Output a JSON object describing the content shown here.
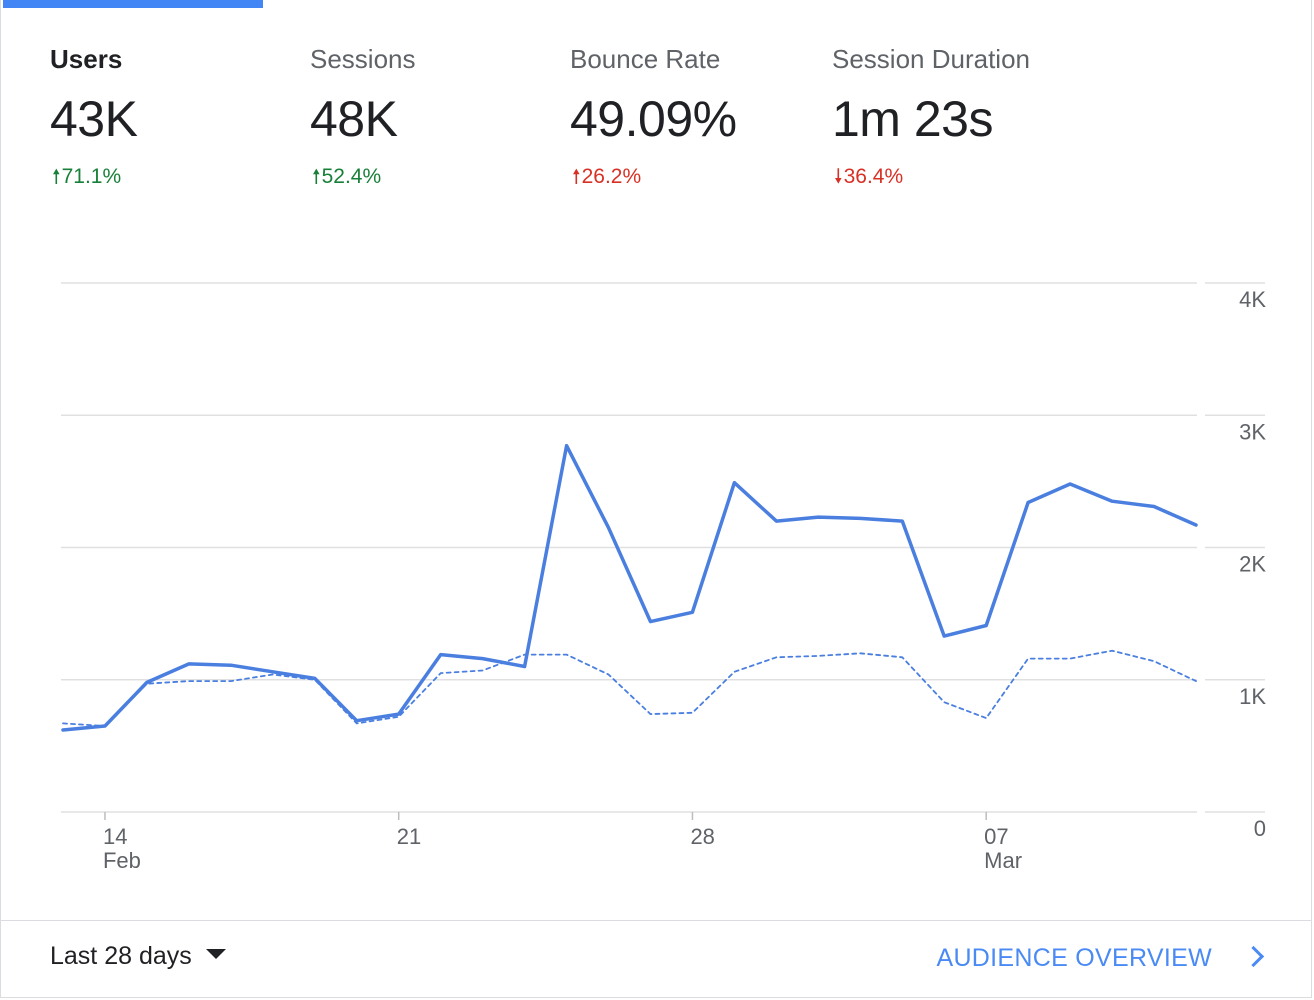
{
  "metrics": [
    {
      "label": "Users",
      "value": "43K",
      "delta": "71.1%",
      "direction": "up",
      "delta_color": "#188038"
    },
    {
      "label": "Sessions",
      "value": "48K",
      "delta": "52.4%",
      "direction": "up",
      "delta_color": "#188038"
    },
    {
      "label": "Bounce Rate",
      "value": "49.09%",
      "delta": "26.2%",
      "direction": "up",
      "delta_color": "#d93025"
    },
    {
      "label": "Session Duration",
      "value": "1m 23s",
      "delta": "36.4%",
      "direction": "down",
      "delta_color": "#d93025"
    }
  ],
  "footer": {
    "date_range": "Last 28 days",
    "overview_link": "AUDIENCE OVERVIEW"
  },
  "colors": {
    "accent": "#4285f4",
    "series_current": "#4a7fe0",
    "up_good": "#188038",
    "bad": "#d93025"
  },
  "chart_data": {
    "type": "line",
    "x": [
      "Feb 13",
      "Feb 14",
      "Feb 15",
      "Feb 16",
      "Feb 17",
      "Feb 18",
      "Feb 19",
      "Feb 20",
      "Feb 21",
      "Feb 22",
      "Feb 23",
      "Feb 24",
      "Feb 25",
      "Feb 26",
      "Feb 27",
      "Feb 28",
      "Mar 01",
      "Mar 02",
      "Mar 03",
      "Mar 04",
      "Mar 05",
      "Mar 06",
      "Mar 07",
      "Mar 08",
      "Mar 09",
      "Mar 10",
      "Mar 11",
      "Mar 12"
    ],
    "series": [
      {
        "style": "solid",
        "values": [
          620,
          650,
          980,
          1120,
          1110,
          1060,
          1010,
          690,
          740,
          1190,
          1160,
          1100,
          2770,
          2150,
          1440,
          1510,
          2490,
          2200,
          2230,
          2220,
          2200,
          1330,
          1410,
          2340,
          2480,
          2350,
          2310,
          2170
        ]
      },
      {
        "style": "dashed",
        "values": [
          670,
          650,
          970,
          990,
          990,
          1040,
          1000,
          670,
          720,
          1050,
          1070,
          1190,
          1190,
          1040,
          740,
          750,
          1060,
          1170,
          1180,
          1200,
          1170,
          830,
          710,
          1160,
          1160,
          1220,
          1140,
          990
        ]
      }
    ],
    "x_ticks": [
      {
        "index": 1,
        "day": "14",
        "month": "Feb"
      },
      {
        "index": 8,
        "day": "21",
        "month": ""
      },
      {
        "index": 15,
        "day": "28",
        "month": ""
      },
      {
        "index": 22,
        "day": "07",
        "month": "Mar"
      }
    ],
    "y_ticks": [
      "0",
      "1K",
      "2K",
      "3K",
      "4K"
    ],
    "ylim": [
      0,
      4000
    ],
    "grid": true,
    "axis_side": "right"
  }
}
